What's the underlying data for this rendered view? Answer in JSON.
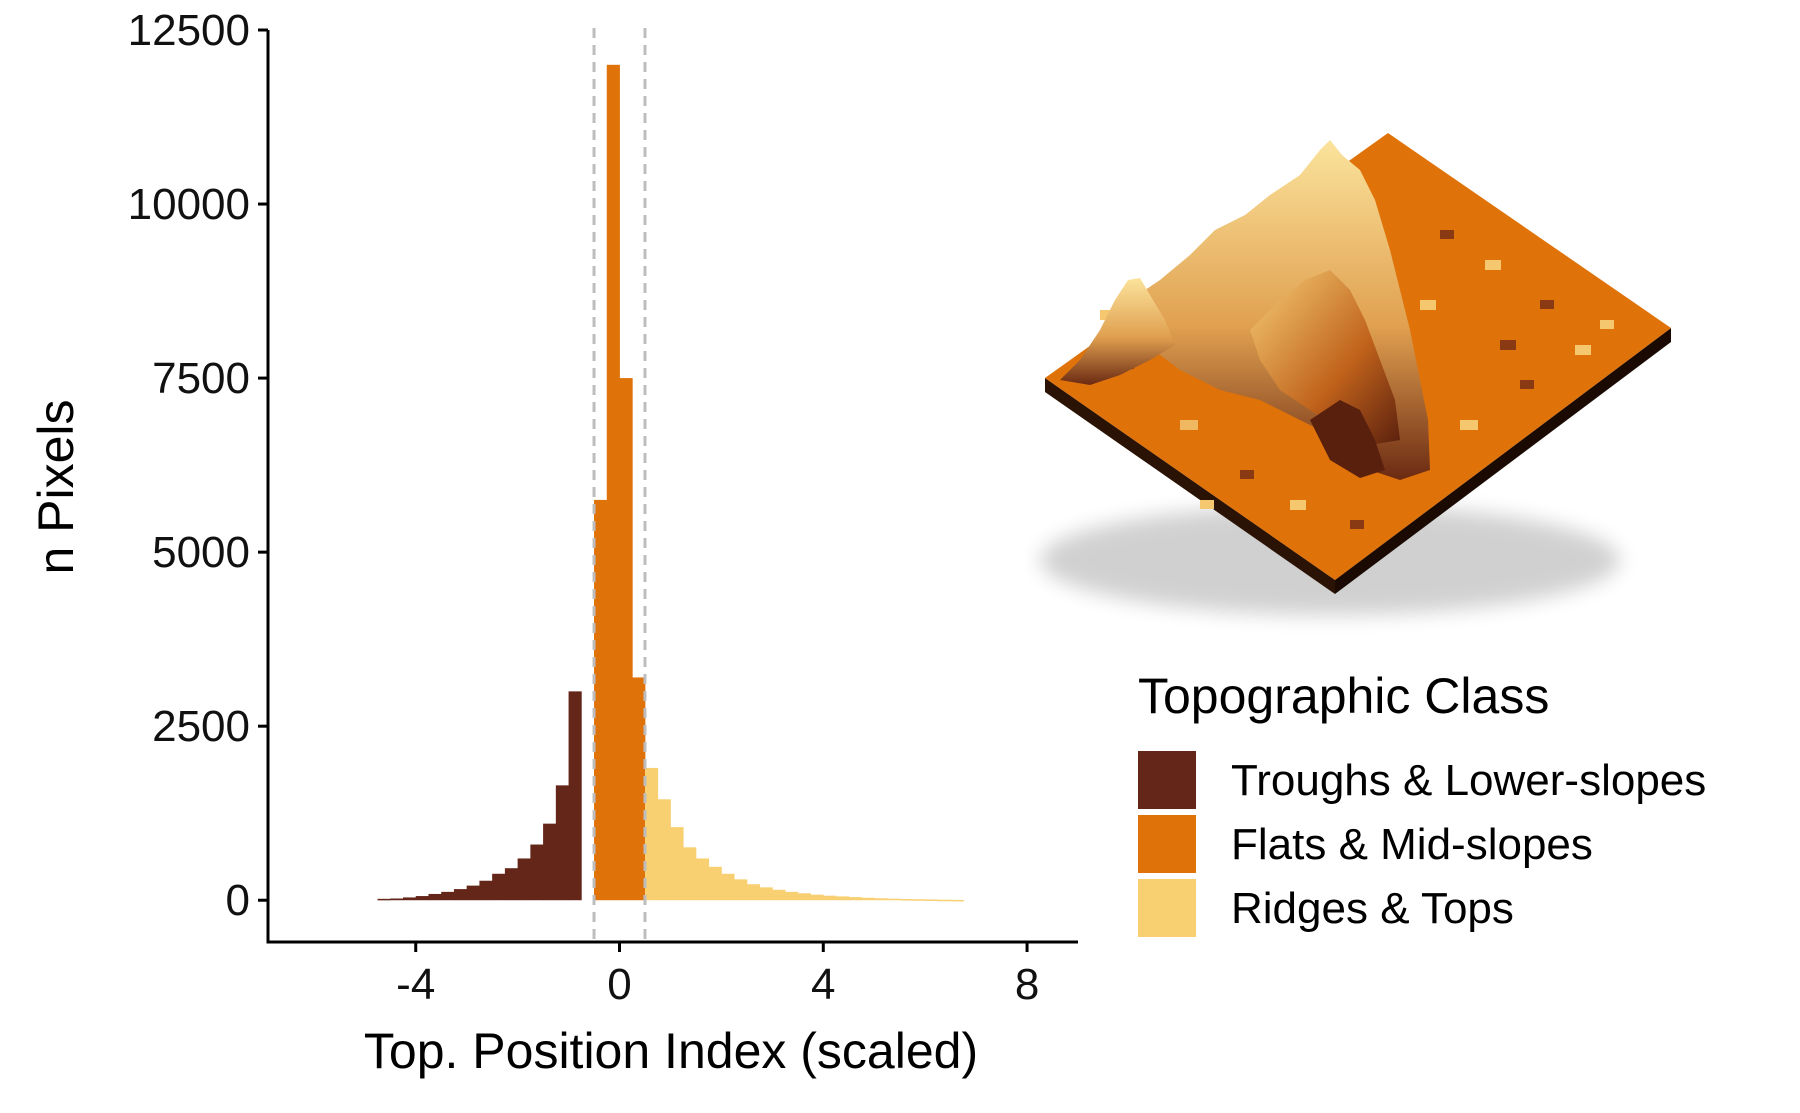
{
  "chart_data": {
    "type": "bar",
    "subtype": "histogram",
    "xlabel": "Top. Position Index (scaled)",
    "ylabel": "n Pixels",
    "xlim": [
      -6.9,
      9.0
    ],
    "ylim": [
      -600,
      12500
    ],
    "x_ticks": [
      -4,
      0,
      4,
      8
    ],
    "x_tick_labels": [
      "-4",
      "0",
      "4",
      "8"
    ],
    "y_ticks": [
      0,
      2500,
      5000,
      7500,
      10000,
      12500
    ],
    "y_tick_labels": [
      "0",
      "2500",
      "5000",
      "7500",
      "10000",
      "12500"
    ],
    "thresholds": [
      -0.5,
      0.5
    ],
    "bin_width": 0.25,
    "legend_title": "Topographic Class",
    "legend_position": "right",
    "classes": [
      {
        "name": "Troughs & Lower-slopes",
        "color": "#65261a"
      },
      {
        "name": "Flats & Mid-slopes",
        "color": "#df7208"
      },
      {
        "name": "Ridges & Tops",
        "color": "#f8d071"
      }
    ],
    "series": [
      {
        "name": "Troughs & Lower-slopes",
        "x": [
          -4.75,
          -4.5,
          -4.25,
          -4.0,
          -3.75,
          -3.5,
          -3.25,
          -3.0,
          -2.75,
          -2.5,
          -2.25,
          -2.0,
          -1.75,
          -1.5,
          -1.25,
          -1.0,
          -0.75
        ],
        "values": [
          20,
          25,
          40,
          60,
          90,
          120,
          160,
          210,
          280,
          380,
          460,
          600,
          800,
          1100,
          1650,
          3000,
          0
        ]
      },
      {
        "name": "Flats & Mid-slopes",
        "x": [
          -0.5,
          -0.25,
          0.0,
          0.25
        ],
        "values": [
          5750,
          12000,
          7500,
          3200
        ]
      },
      {
        "name": "Ridges & Tops",
        "x": [
          0.5,
          0.75,
          1.0,
          1.25,
          1.5,
          1.75,
          2.0,
          2.25,
          2.5,
          2.75,
          3.0,
          3.25,
          3.5,
          3.75,
          4.0,
          4.25,
          4.5,
          4.75,
          5.0,
          5.25,
          5.5,
          5.75,
          6.0,
          6.25,
          6.5
        ],
        "values": [
          1900,
          1450,
          1050,
          760,
          600,
          480,
          380,
          300,
          230,
          185,
          150,
          120,
          100,
          80,
          65,
          55,
          45,
          35,
          28,
          22,
          18,
          14,
          10,
          7,
          5
        ]
      }
    ]
  },
  "colors": {
    "axis": "#000000",
    "threshold_line": "#bdbdbd",
    "terrain_side": "#2a1204"
  },
  "inset": {
    "icon": "3d-terrain-render"
  }
}
